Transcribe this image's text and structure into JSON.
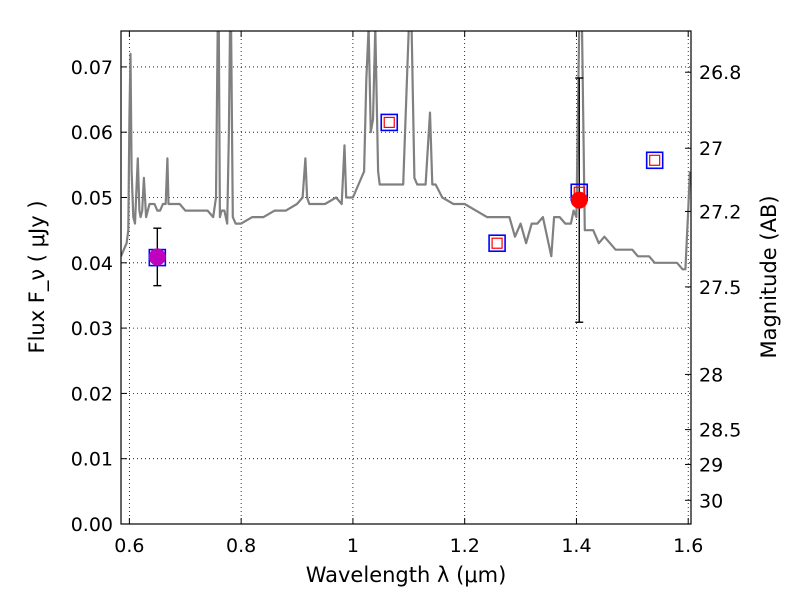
{
  "chart_data": {
    "type": "scatter",
    "xlabel": "Wavelength λ (μm)",
    "ylabel": "Flux F_ν ( μJy )",
    "y2label": "Magnitude (AB)",
    "xlim": [
      0.585,
      1.605
    ],
    "ylim": [
      0.0,
      0.0755
    ],
    "x_ticks": [
      {
        "value": 0.6,
        "label": "0.6"
      },
      {
        "value": 0.8,
        "label": "0.8"
      },
      {
        "value": 1.0,
        "label": "1"
      },
      {
        "value": 1.2,
        "label": "1.2"
      },
      {
        "value": 1.4,
        "label": "1.4"
      },
      {
        "value": 1.6,
        "label": "1.6"
      }
    ],
    "y_ticks": [
      {
        "value": 0.0,
        "label": "0.00"
      },
      {
        "value": 0.01,
        "label": "0.01"
      },
      {
        "value": 0.02,
        "label": "0.02"
      },
      {
        "value": 0.03,
        "label": "0.03"
      },
      {
        "value": 0.04,
        "label": "0.04"
      },
      {
        "value": 0.05,
        "label": "0.05"
      },
      {
        "value": 0.06,
        "label": "0.06"
      },
      {
        "value": 0.07,
        "label": "0.07"
      }
    ],
    "y2_ticks": [
      {
        "value": 26.8,
        "label": "26.8"
      },
      {
        "value": 27.0,
        "label": "27"
      },
      {
        "value": 27.2,
        "label": "27.2"
      },
      {
        "value": 27.5,
        "label": "27.5"
      },
      {
        "value": 28.0,
        "label": "28"
      },
      {
        "value": 28.5,
        "label": "28.5"
      },
      {
        "value": 29.0,
        "label": "29"
      },
      {
        "value": 30.0,
        "label": "30"
      }
    ],
    "grid": true,
    "colors": {
      "spectrum": "#808080",
      "observed": "#ff0000",
      "observed_first": "#bf00bf",
      "model_outer": "#0000ff",
      "model_inner": "#ff0000",
      "errorbar": "#000000",
      "grid": "#000000"
    },
    "spectrum": {
      "x": [
        0.585,
        0.59,
        0.595,
        0.598,
        0.6,
        0.602,
        0.604,
        0.607,
        0.61,
        0.612,
        0.615,
        0.618,
        0.62,
        0.623,
        0.626,
        0.63,
        0.633,
        0.636,
        0.64,
        0.645,
        0.65,
        0.655,
        0.66,
        0.665,
        0.668,
        0.67,
        0.672,
        0.675,
        0.68,
        0.69,
        0.7,
        0.72,
        0.74,
        0.75,
        0.755,
        0.758,
        0.76,
        0.762,
        0.765,
        0.77,
        0.775,
        0.778,
        0.78,
        0.782,
        0.785,
        0.79,
        0.8,
        0.82,
        0.84,
        0.86,
        0.88,
        0.9,
        0.91,
        0.915,
        0.918,
        0.922,
        0.93,
        0.95,
        0.97,
        0.98,
        0.985,
        0.988,
        0.992,
        1.0,
        1.01,
        1.02,
        1.024,
        1.028,
        1.032,
        1.036,
        1.04,
        1.045,
        1.048,
        1.055,
        1.06,
        1.07,
        1.08,
        1.09,
        1.1,
        1.105,
        1.11,
        1.115,
        1.12,
        1.13,
        1.138,
        1.142,
        1.148,
        1.16,
        1.18,
        1.2,
        1.22,
        1.24,
        1.26,
        1.28,
        1.29,
        1.3,
        1.31,
        1.32,
        1.33,
        1.34,
        1.35,
        1.355,
        1.36,
        1.37,
        1.38,
        1.39,
        1.395,
        1.4,
        1.405,
        1.41,
        1.415,
        1.42,
        1.425,
        1.43,
        1.44,
        1.45,
        1.46,
        1.47,
        1.48,
        1.49,
        1.5,
        1.51,
        1.52,
        1.53,
        1.54,
        1.55,
        1.56,
        1.57,
        1.58,
        1.59,
        1.595,
        1.6,
        1.603
      ],
      "y": [
        0.041,
        0.042,
        0.043,
        0.045,
        0.062,
        0.072,
        0.054,
        0.047,
        0.046,
        0.05,
        0.056,
        0.048,
        0.047,
        0.048,
        0.053,
        0.047,
        0.048,
        0.049,
        0.049,
        0.049,
        0.048,
        0.048,
        0.049,
        0.049,
        0.056,
        0.049,
        0.049,
        0.049,
        0.049,
        0.049,
        0.048,
        0.048,
        0.048,
        0.047,
        0.05,
        0.076,
        0.076,
        0.047,
        0.048,
        0.048,
        0.046,
        0.06,
        0.076,
        0.076,
        0.047,
        0.046,
        0.046,
        0.047,
        0.047,
        0.048,
        0.048,
        0.049,
        0.05,
        0.056,
        0.05,
        0.049,
        0.049,
        0.049,
        0.05,
        0.049,
        0.058,
        0.05,
        0.05,
        0.05,
        0.052,
        0.054,
        0.068,
        0.076,
        0.06,
        0.062,
        0.076,
        0.054,
        0.052,
        0.052,
        0.052,
        0.052,
        0.052,
        0.052,
        0.076,
        0.076,
        0.053,
        0.052,
        0.052,
        0.052,
        0.063,
        0.052,
        0.052,
        0.05,
        0.049,
        0.049,
        0.048,
        0.047,
        0.047,
        0.047,
        0.044,
        0.046,
        0.043,
        0.046,
        0.046,
        0.047,
        0.043,
        0.041,
        0.047,
        0.047,
        0.046,
        0.046,
        0.048,
        0.047,
        0.076,
        0.076,
        0.045,
        0.045,
        0.045,
        0.045,
        0.043,
        0.044,
        0.043,
        0.042,
        0.042,
        0.042,
        0.042,
        0.041,
        0.041,
        0.041,
        0.04,
        0.04,
        0.04,
        0.04,
        0.04,
        0.039,
        0.039,
        0.048,
        0.054
      ]
    },
    "observed": [
      {
        "x": 0.65,
        "y": 0.0409,
        "err": 0.0044
      },
      {
        "x": 1.405,
        "y": 0.0496,
        "err": 0.0187
      }
    ],
    "model": [
      {
        "x": 0.65,
        "y": 0.0408
      },
      {
        "x": 1.065,
        "y": 0.0615
      },
      {
        "x": 1.258,
        "y": 0.043
      },
      {
        "x": 1.405,
        "y": 0.0508
      },
      {
        "x": 1.54,
        "y": 0.0557
      }
    ]
  }
}
